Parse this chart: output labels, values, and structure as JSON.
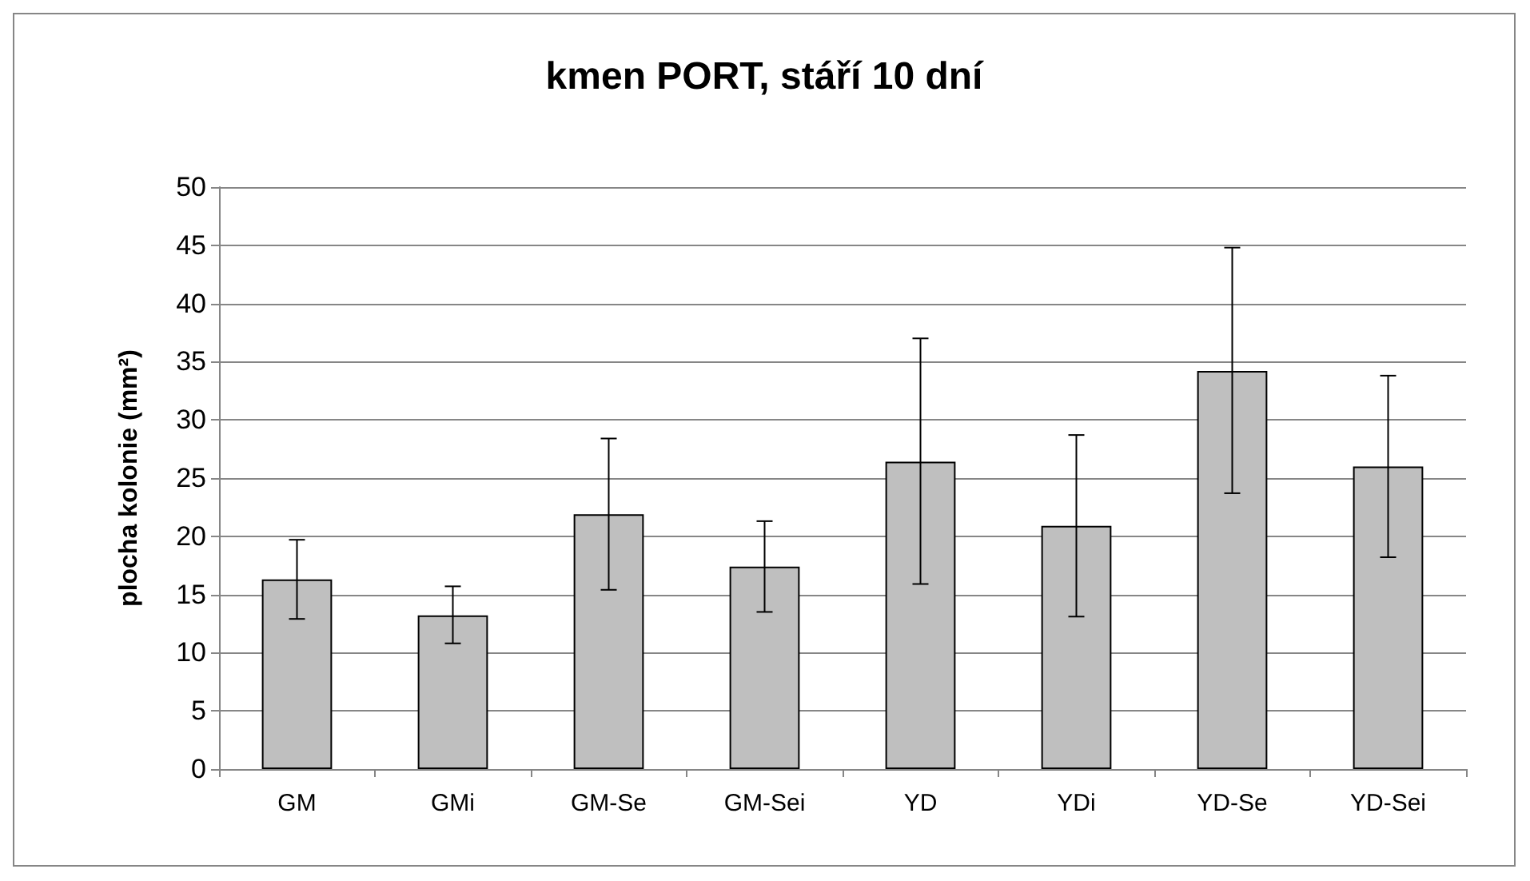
{
  "chart_data": {
    "type": "bar",
    "title": "kmen PORT, stáří 10 dní",
    "ylabel": "plocha kolonie (mm²)",
    "categories": [
      "GM",
      "GMi",
      "GM-Se",
      "GM-Sei",
      "YD",
      "YDi",
      "YD-Se",
      "YD-Sei"
    ],
    "values": [
      16.3,
      13.2,
      21.9,
      17.4,
      26.4,
      20.9,
      34.2,
      26.0
    ],
    "errors": [
      [
        12.9,
        19.7
      ],
      [
        10.8,
        15.7
      ],
      [
        15.4,
        28.4
      ],
      [
        13.5,
        21.3
      ],
      [
        15.9,
        37.0
      ],
      [
        13.1,
        28.7
      ],
      [
        23.7,
        44.8
      ],
      [
        18.2,
        33.8
      ]
    ],
    "color": "#bfbfbf",
    "ylim": [
      0,
      50
    ],
    "yticks": [
      0,
      5,
      10,
      15,
      20,
      25,
      30,
      35,
      40,
      45,
      50
    ],
    "grid": "y"
  }
}
